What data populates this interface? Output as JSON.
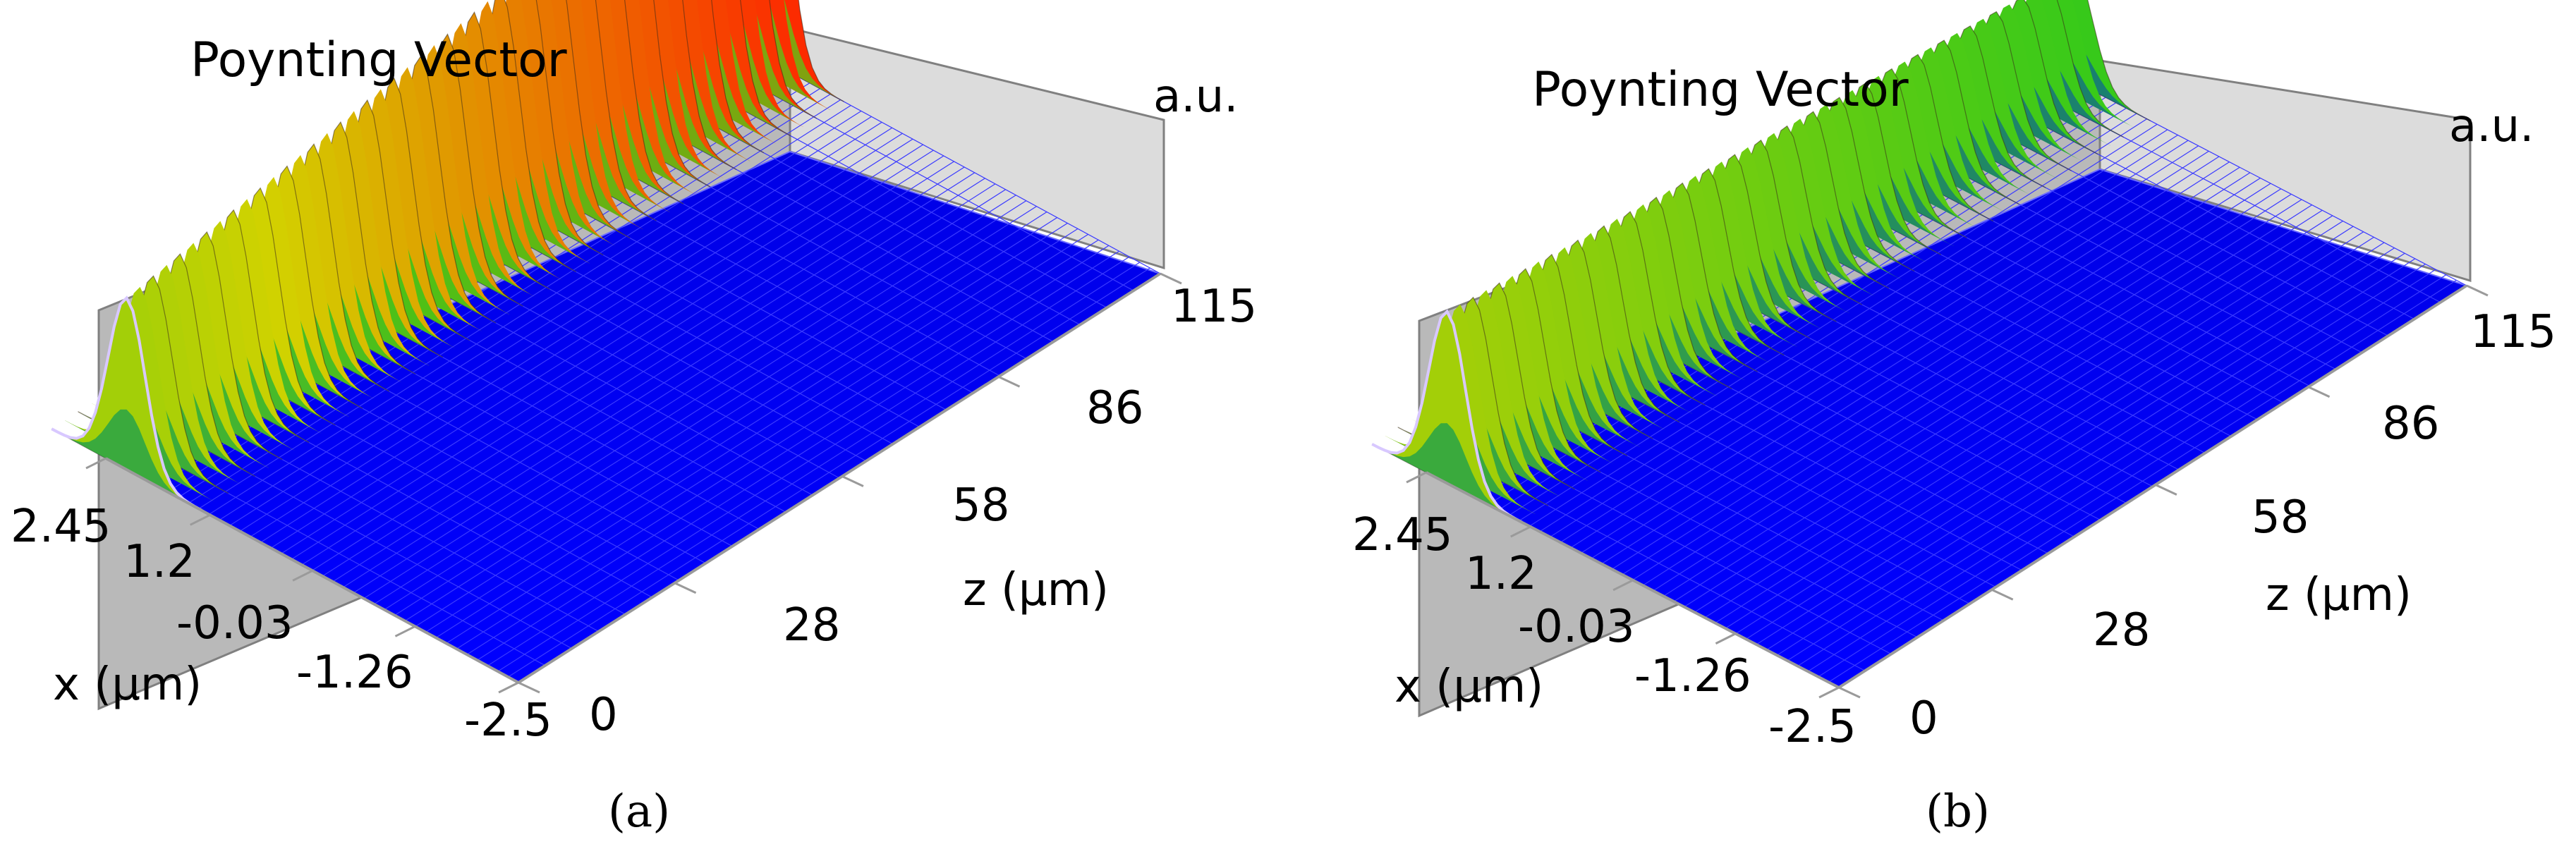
{
  "chart_data": [
    {
      "type": "surface3d",
      "title": "Poynting Vector",
      "panel_label": "(a)",
      "zlabel": "a.u.",
      "xlabel": "x (μm)",
      "ylabel": "z (μm)",
      "x_ticks": [
        "2.45",
        "1.2",
        "-0.03",
        "-1.26",
        "-2.5"
      ],
      "z_ticks": [
        "0",
        "28",
        "58",
        "86",
        "115"
      ],
      "xlim": [
        -2.5,
        2.45
      ],
      "zlim": [
        0,
        115
      ],
      "beam_center_x": 2.2,
      "peak_start": 0.58,
      "peak_end": 0.98,
      "colorscale": [
        "#0000ff",
        "#1ec81e",
        "#d2d200",
        "#ff2000"
      ]
    },
    {
      "type": "surface3d",
      "title": "Poynting Vector",
      "panel_label": "(b)",
      "zlabel": "a.u.",
      "xlabel": "x (μm)",
      "ylabel": "z (μm)",
      "x_ticks": [
        "2.45",
        "1.2",
        "-0.03",
        "-1.26",
        "-2.5"
      ],
      "z_ticks": [
        "0",
        "28",
        "58",
        "86",
        "115"
      ],
      "xlim": [
        -2.5,
        2.45
      ],
      "zlim": [
        0,
        115
      ],
      "beam_center_x": 2.2,
      "peak_start": 0.58,
      "peak_end": 0.38,
      "colorscale": [
        "#0000ff",
        "#1ec81e",
        "#d2d200",
        "#ff2000"
      ]
    }
  ]
}
